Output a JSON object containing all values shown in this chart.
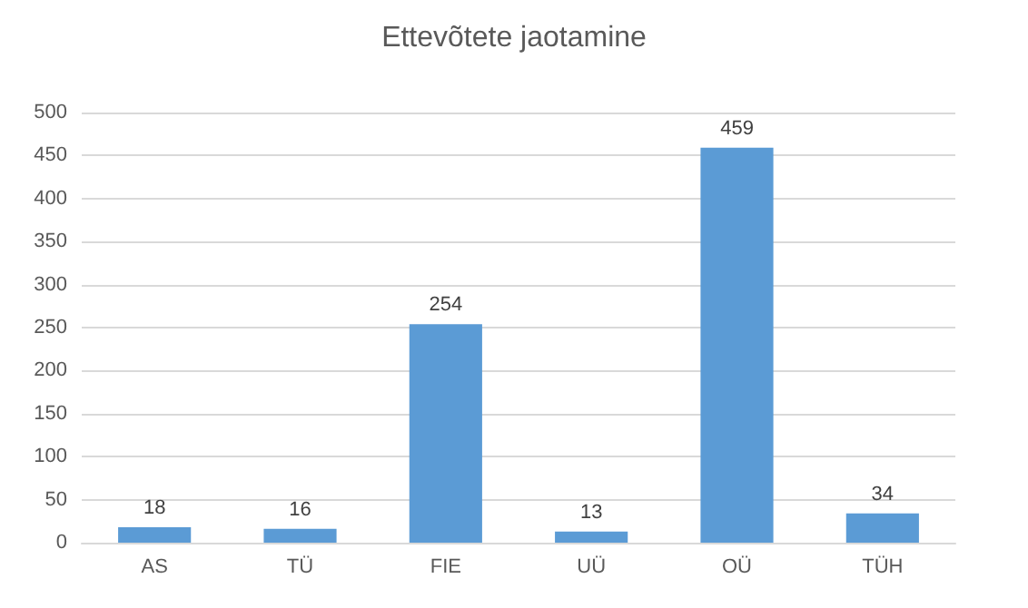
{
  "chart_data": {
    "type": "bar",
    "title": "Ettevõtete jaotamine",
    "categories": [
      "AS",
      "TÜ",
      "FIE",
      "UÜ",
      "OÜ",
      "TÜH"
    ],
    "values": [
      18,
      16,
      254,
      13,
      459,
      34
    ],
    "color": "#5b9bd5",
    "ylim": [
      0,
      500
    ],
    "yticks": [
      0,
      50,
      100,
      150,
      200,
      250,
      300,
      350,
      400,
      450,
      500
    ],
    "grid": "y",
    "data_labels": true
  }
}
